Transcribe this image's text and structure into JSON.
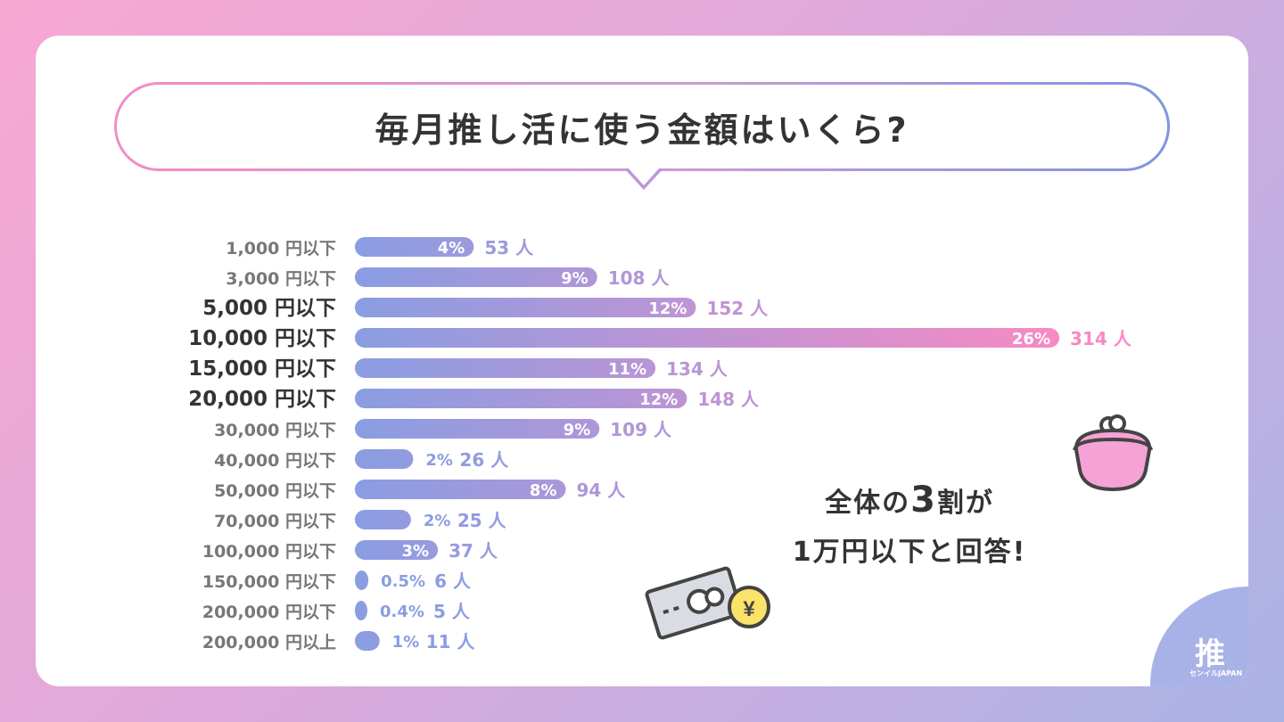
{
  "title": "毎月推し活に使う金額はいくら?",
  "callout": {
    "line1_prefix": "全体の",
    "line1_emphasis": "3",
    "line1_suffix": "割が",
    "line2": "1万円以下と回答!"
  },
  "logo": {
    "mark": "推",
    "brand": "センイルJAPAN"
  },
  "chart_data": {
    "type": "bar",
    "orientation": "horizontal",
    "categories": [
      "1,000 円以下",
      "3,000 円以下",
      "5,000 円以下",
      "10,000 円以下",
      "15,000 円以下",
      "20,000 円以下",
      "30,000 円以下",
      "40,000 円以下",
      "50,000 円以下",
      "70,000 円以下",
      "100,000 円以下",
      "150,000 円以下",
      "200,000 円以下",
      "200,000 円以上"
    ],
    "values": [
      53,
      108,
      152,
      314,
      134,
      148,
      109,
      26,
      94,
      25,
      37,
      6,
      5,
      11
    ],
    "percent_labels": [
      "4%",
      "9%",
      "12%",
      "26%",
      "11%",
      "12%",
      "9%",
      "2%",
      "8%",
      "2%",
      "3%",
      "0.5%",
      "0.4%",
      "1%"
    ],
    "count_labels": [
      "53 人",
      "108 人",
      "152 人",
      "314 人",
      "134 人",
      "148 人",
      "109 人",
      "26 人",
      "94 人",
      "25 人",
      "37 人",
      "6 人",
      "5 人",
      "11 人"
    ],
    "emphasized_categories": [
      "5,000 円以下",
      "10,000 円以下",
      "15,000 円以下",
      "20,000 円以下"
    ],
    "colors": {
      "start": "#8a9de2",
      "end": "#f78ac4",
      "label_dark": "#333333",
      "label_muted": "#777777"
    }
  }
}
